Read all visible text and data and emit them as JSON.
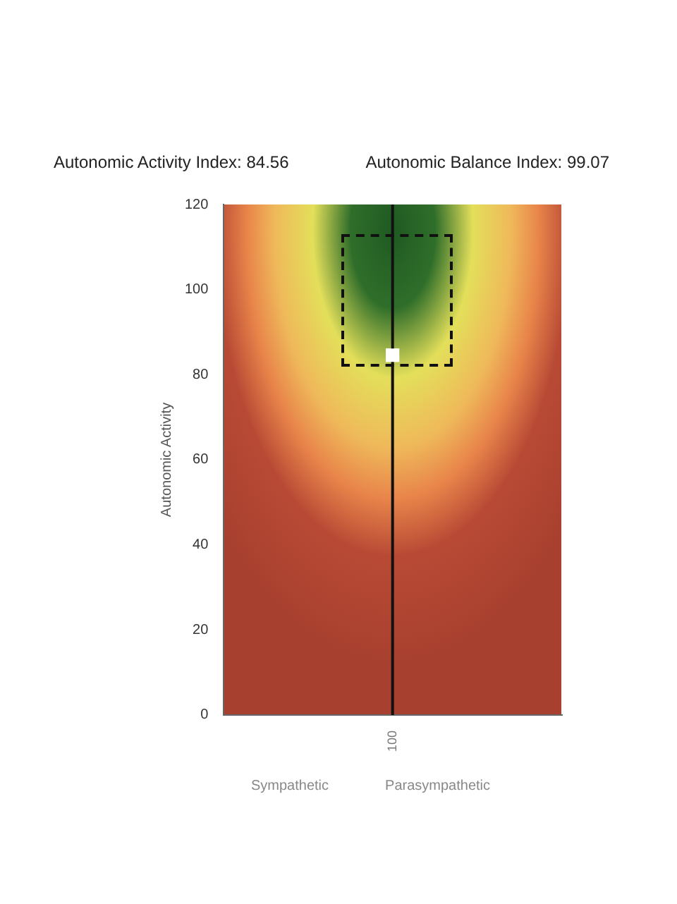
{
  "chart_data": {
    "type": "scatter",
    "title": "Autonomic Activity Index: 84.56",
    "subtitle": "Autonomic Balance Index: 99.07",
    "ylabel": "Autonomic Activity",
    "annotations": [
      "Sympathetic",
      "Parasympathetic"
    ],
    "categories": [
      "100"
    ],
    "series": [
      {
        "color": "#ffffff",
        "values": [
          84.56
        ]
      }
    ],
    "marker": "square",
    "legend": false,
    "ref_lines": [
      {
        "axis": "x",
        "value": "100",
        "color": "#111111"
      }
    ],
    "ylim": [
      0,
      120
    ],
    "yticks": [
      0,
      20,
      40,
      60,
      80,
      100,
      120
    ]
  }
}
